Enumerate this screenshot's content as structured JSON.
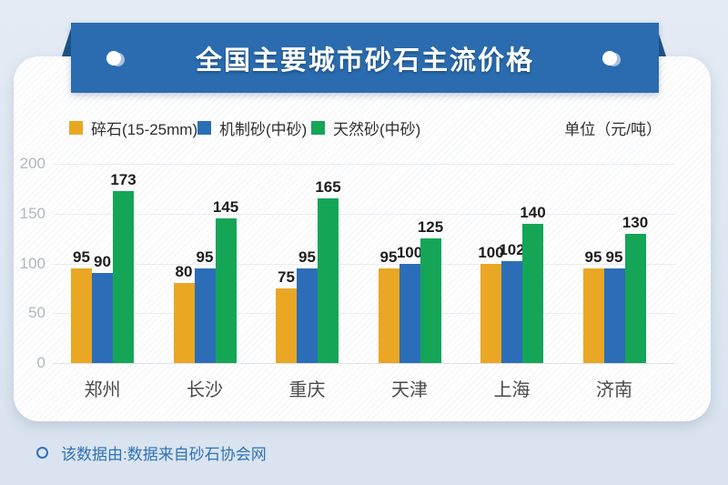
{
  "banner": {
    "title": "全国主要城市砂石主流价格"
  },
  "legend": {
    "unit_label": "单位（元/吨）"
  },
  "footer": {
    "text": "该数据由:数据来自砂石协会网"
  },
  "colors": {
    "ribbon_blue": "#2b6cb0",
    "ribbon_fold": "#1e5286",
    "bar_orange": "#e9a724",
    "bar_blue": "#2b6eb7",
    "bar_green": "#15a557",
    "footer_blue": "#2e72b7"
  },
  "chart_data": {
    "type": "bar",
    "title": "全国主要城市砂石主流价格",
    "unit": "元/吨",
    "categories": [
      "郑州",
      "长沙",
      "重庆",
      "天津",
      "上海",
      "济南"
    ],
    "series": [
      {
        "name": "碎石(15-25mm)",
        "color": "#e9a724",
        "values": [
          95,
          80,
          75,
          95,
          100,
          95
        ]
      },
      {
        "name": "机制砂(中砂)",
        "color": "#2b6eb7",
        "values": [
          90,
          95,
          95,
          100,
          102,
          95
        ]
      },
      {
        "name": "天然砂(中砂)",
        "color": "#15a557",
        "values": [
          173,
          145,
          165,
          125,
          140,
          130
        ]
      }
    ],
    "xlabel": "",
    "ylabel": "",
    "ylim": [
      0,
      200
    ],
    "yticks": [
      0,
      50,
      100,
      150,
      200
    ],
    "grid": true,
    "legend_position": "top"
  }
}
